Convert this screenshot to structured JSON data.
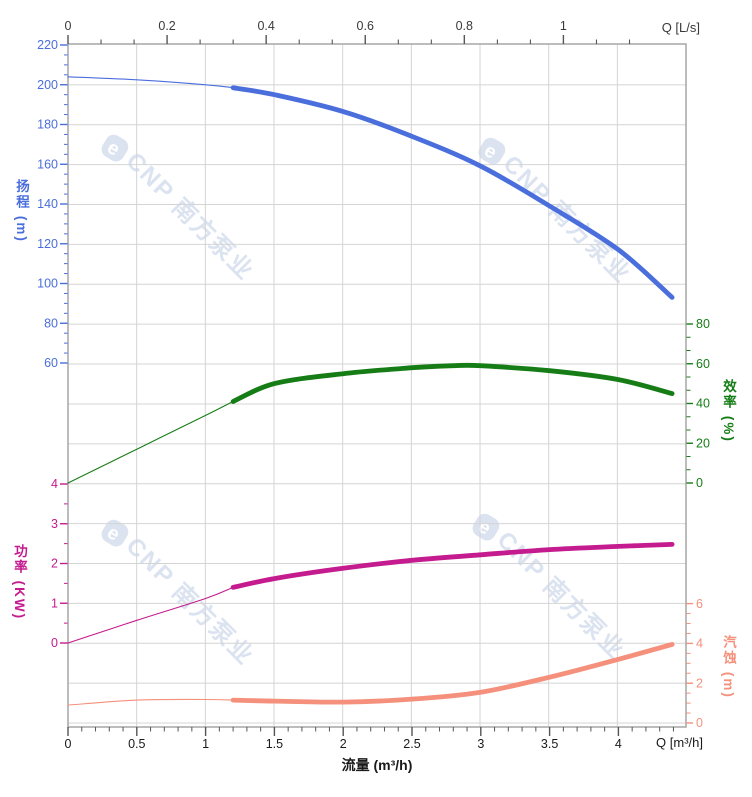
{
  "watermark": {
    "logo_char": "e",
    "text": "CNP 南方泵业",
    "color": "#dbe3f0"
  },
  "axes": {
    "top": {
      "unit_label": "Q [L/s]",
      "ticks": [
        0,
        0.2,
        0.4,
        0.6,
        0.8,
        1
      ],
      "text_color": "#3a3a3a"
    },
    "bottom": {
      "unit_label": "Q [m³/h]",
      "title": "流量 (m³/h)",
      "ticks": [
        0,
        0.5,
        1,
        1.5,
        2,
        2.5,
        3,
        3.5,
        4
      ],
      "text_color": "#1a1a1a"
    },
    "head": {
      "title": "扬程 (m)",
      "ticks": [
        220,
        200,
        180,
        160,
        140,
        120,
        100,
        80,
        60
      ],
      "color": "#4a6edb"
    },
    "power": {
      "title": "功率 (KW)",
      "ticks": [
        4,
        3,
        2,
        1,
        0
      ],
      "color": "#c41b8f"
    },
    "efficiency": {
      "title": "效率 (%)",
      "ticks": [
        80,
        60,
        40,
        20,
        0
      ],
      "color": "#167d16"
    },
    "npsh": {
      "title": "汽蚀 (m)",
      "ticks": [
        6,
        4,
        2,
        0
      ],
      "color": "#f4907b"
    }
  },
  "style_colors": {
    "grid": "#d4d4d4",
    "frame": "#ababab",
    "top_bottom_ticks": "#555555"
  },
  "chart_data": {
    "type": "line",
    "title": "",
    "xlabel_bottom": "流量 (m³/h)",
    "xlabel_top": "Q [L/s]",
    "x_range_m3h": [
      0,
      4.49
    ],
    "x_range_ls": [
      0,
      1.25
    ],
    "thick_from_q": 1.2,
    "grid": true,
    "axis_ranges": {
      "head": {
        "min": 60,
        "max": 220,
        "unit": "m"
      },
      "efficiency": {
        "min": 0,
        "max": 80,
        "unit": "%"
      },
      "power": {
        "min": 0,
        "max": 4,
        "unit": "KW"
      },
      "npsh": {
        "min": 0,
        "max": 6,
        "unit": "m"
      }
    },
    "series": [
      {
        "name": "head",
        "axis": "head",
        "color": "#4a6edb",
        "points": [
          [
            0,
            204
          ],
          [
            0.5,
            202.5
          ],
          [
            1,
            200
          ],
          [
            1.2,
            198.5
          ],
          [
            1.5,
            195
          ],
          [
            2,
            186.5
          ],
          [
            2.5,
            174
          ],
          [
            3,
            159
          ],
          [
            3.5,
            139
          ],
          [
            4,
            117
          ],
          [
            4.39,
            93
          ]
        ]
      },
      {
        "name": "efficiency",
        "axis": "efficiency",
        "color": "#167d16",
        "points": [
          [
            0,
            0
          ],
          [
            0.5,
            17
          ],
          [
            1,
            34
          ],
          [
            1.2,
            41
          ],
          [
            1.5,
            50
          ],
          [
            2,
            55
          ],
          [
            2.5,
            58
          ],
          [
            2.8,
            59
          ],
          [
            3,
            59
          ],
          [
            3.5,
            56.5
          ],
          [
            4,
            52
          ],
          [
            4.39,
            45
          ]
        ]
      },
      {
        "name": "power",
        "axis": "power",
        "color": "#c41b8f",
        "points": [
          [
            0,
            0
          ],
          [
            0.5,
            0.57
          ],
          [
            1,
            1.12
          ],
          [
            1.2,
            1.4
          ],
          [
            1.5,
            1.62
          ],
          [
            2,
            1.88
          ],
          [
            2.5,
            2.08
          ],
          [
            3,
            2.22
          ],
          [
            3.5,
            2.35
          ],
          [
            4,
            2.43
          ],
          [
            4.39,
            2.48
          ]
        ]
      },
      {
        "name": "npsh",
        "axis": "npsh",
        "color": "#f4907b",
        "points": [
          [
            0,
            0.9
          ],
          [
            0.5,
            1.15
          ],
          [
            1,
            1.18
          ],
          [
            1.2,
            1.15
          ],
          [
            1.5,
            1.1
          ],
          [
            2,
            1.05
          ],
          [
            2.5,
            1.2
          ],
          [
            3,
            1.55
          ],
          [
            3.5,
            2.3
          ],
          [
            4,
            3.2
          ],
          [
            4.39,
            3.95
          ]
        ]
      }
    ]
  }
}
